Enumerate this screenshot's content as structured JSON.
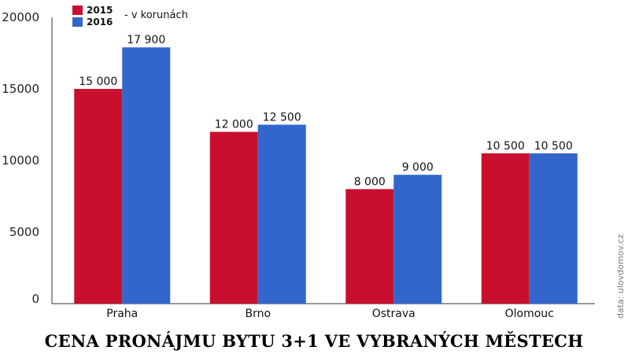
{
  "chart_data": {
    "type": "bar",
    "title": "CENA PRONÁJMU BYTU 3+1 VE VYBRANÝCH MĚSTECH",
    "unit_note": "- v korunách",
    "source": "data: ulovdomov.cz",
    "categories": [
      "Praha",
      "Brno",
      "Ostrava",
      "Olomouc"
    ],
    "series": [
      {
        "name": "2015",
        "color": "#c8102e",
        "values": [
          15000,
          12000,
          8000,
          10500
        ],
        "labels": [
          "15 000",
          "12 000",
          "8 000",
          "10 500"
        ]
      },
      {
        "name": "2016",
        "color": "#3366cc",
        "values": [
          17900,
          12500,
          9000,
          10500
        ],
        "labels": [
          "17 900",
          "12 500",
          "9 000",
          "10 500"
        ]
      }
    ],
    "yticks": [
      0,
      5000,
      10000,
      15000,
      20000
    ],
    "ylim": [
      0,
      20000
    ],
    "grid": false,
    "legend": "top-left"
  }
}
